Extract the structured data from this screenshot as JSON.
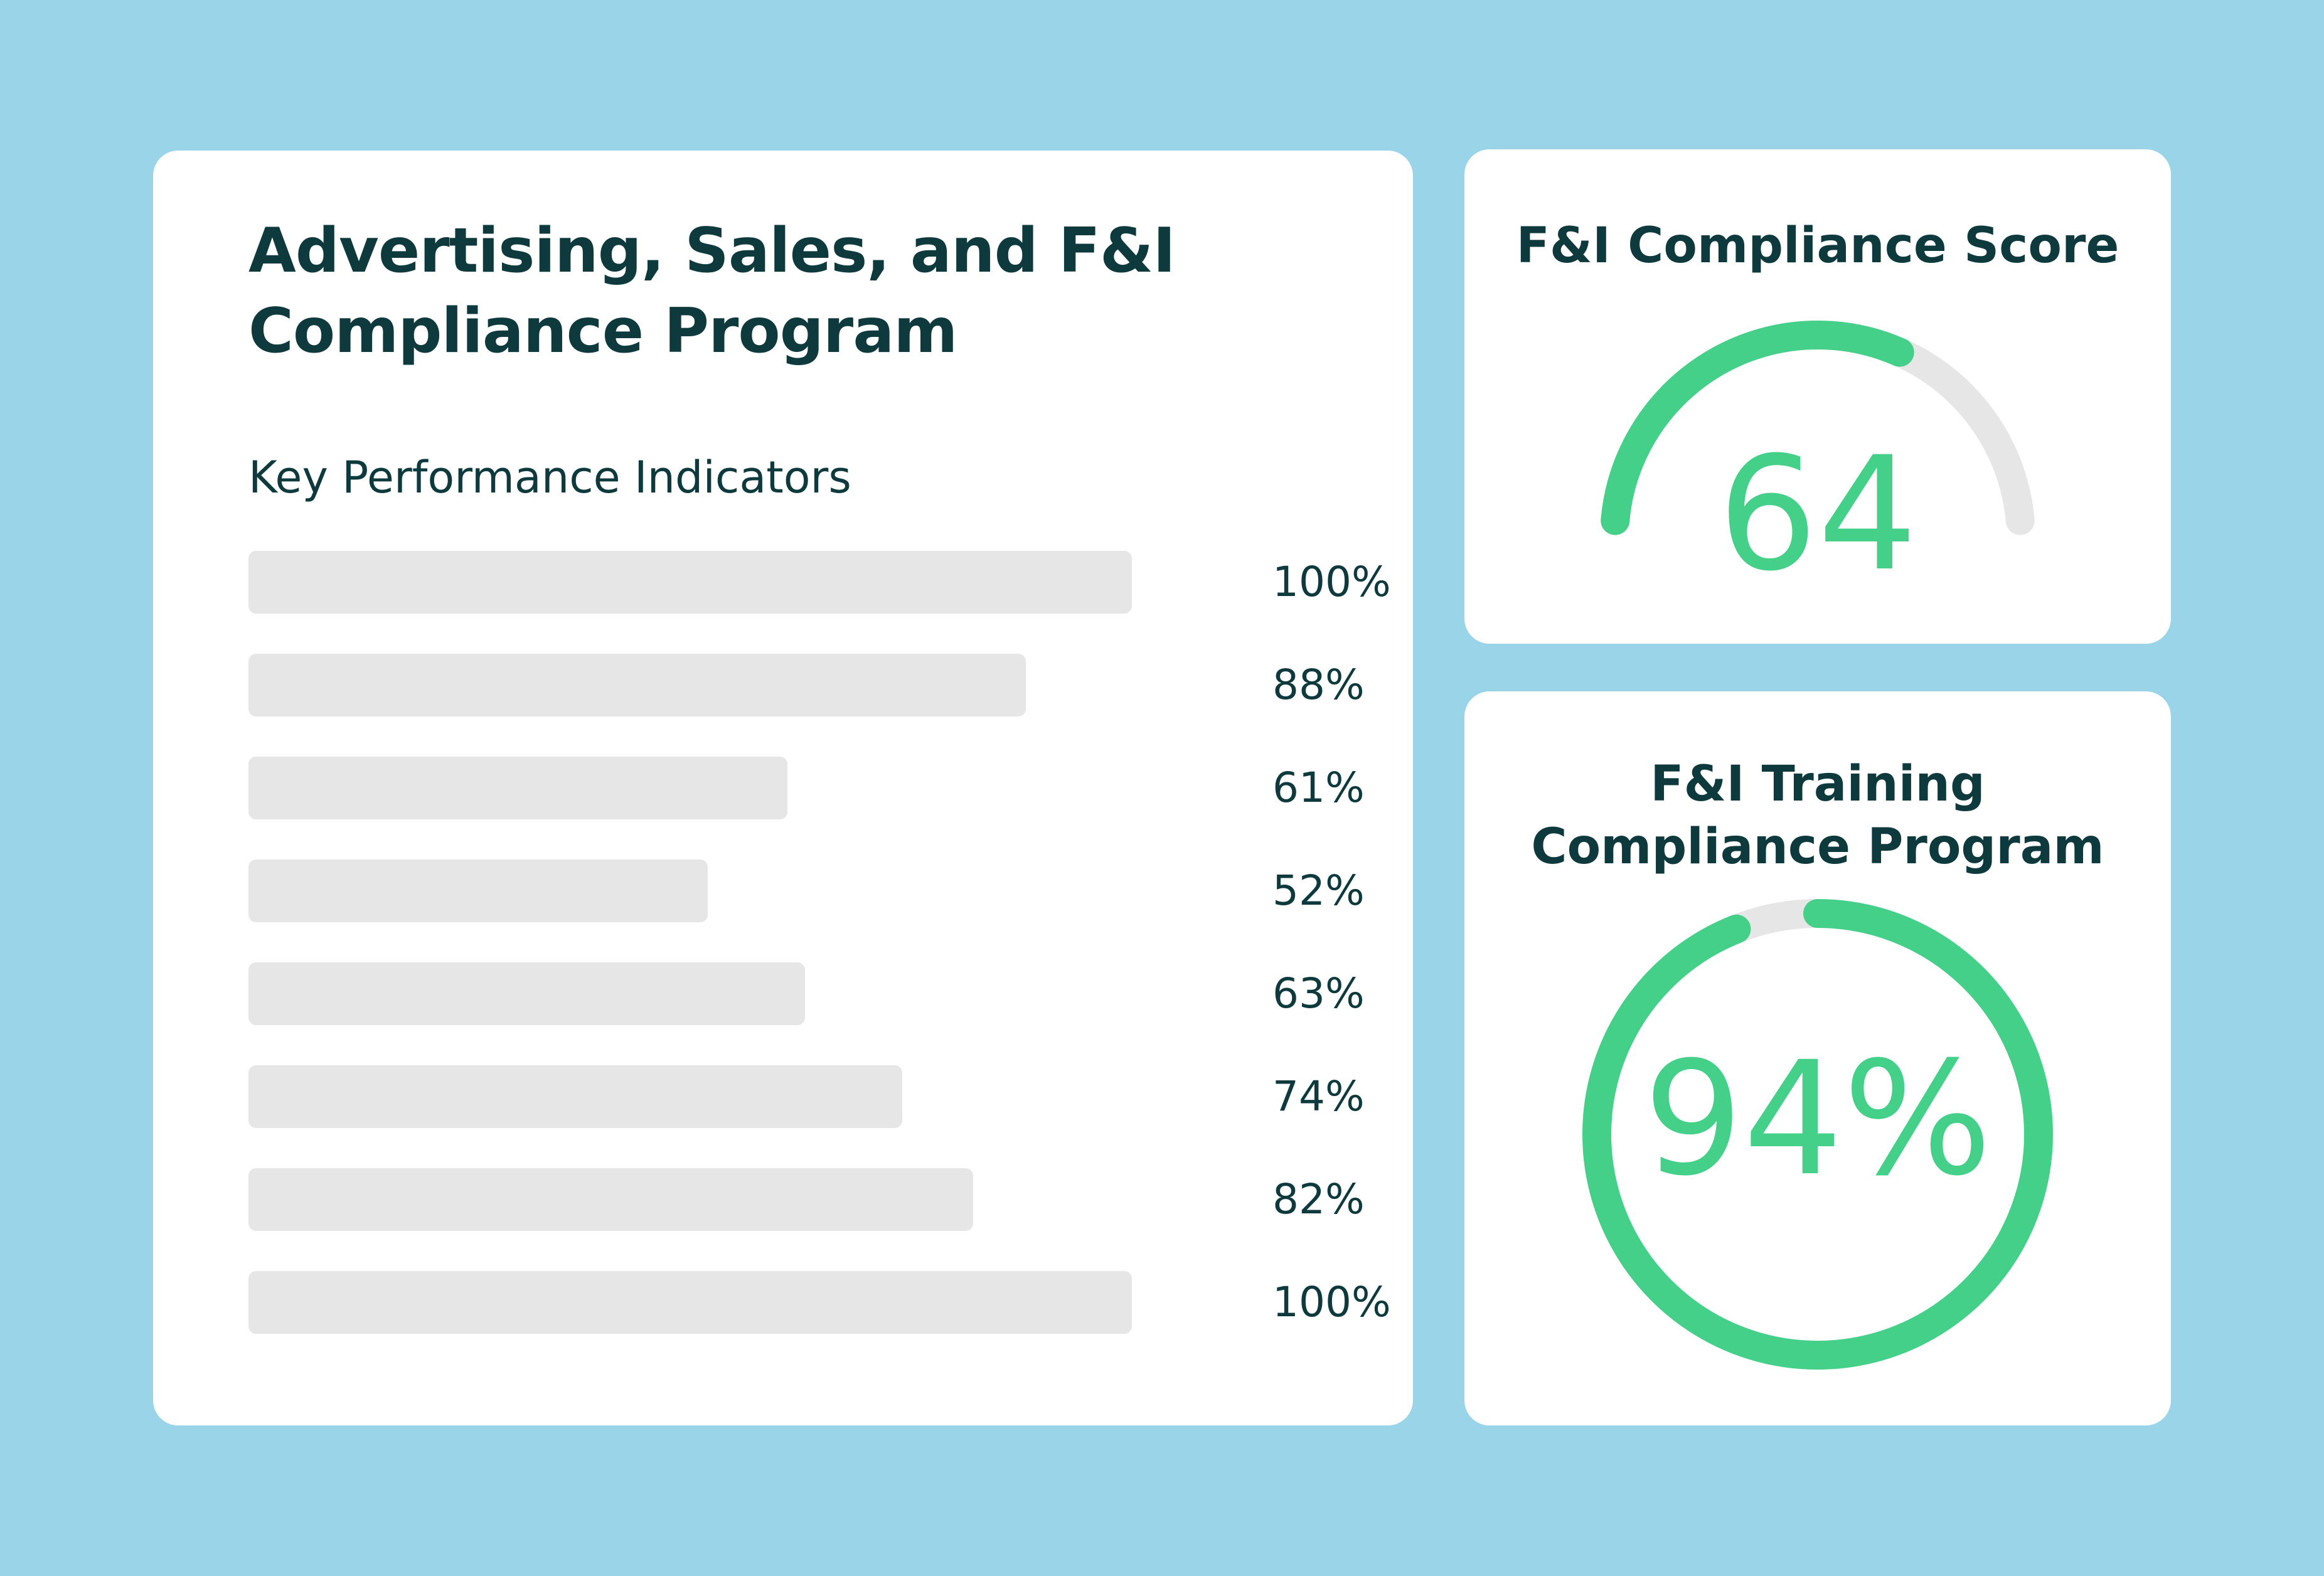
{
  "kpi_card": {
    "title_lines": [
      "Advertising, Sales, and F&I",
      "Compliance Program"
    ],
    "subtitle": "Key Performance Indicators",
    "bars": [
      {
        "value": 100,
        "label": "100%"
      },
      {
        "value": 88,
        "label": "88%"
      },
      {
        "value": 61,
        "label": "61%"
      },
      {
        "value": 52,
        "label": "52%"
      },
      {
        "value": 63,
        "label": "63%"
      },
      {
        "value": 74,
        "label": "74%"
      },
      {
        "value": 82,
        "label": "82%"
      },
      {
        "value": 100,
        "label": "100%"
      }
    ]
  },
  "score_card": {
    "title": "F&I Compliance Score",
    "value": "64",
    "fraction": 0.64
  },
  "training_card": {
    "title_lines": [
      "F&I Training",
      "Compliance Program"
    ],
    "value": "94%",
    "fraction": 0.94
  },
  "colors": {
    "background": "#99D4E8",
    "card": "#FFFFFF",
    "text": "#0E3A3E",
    "accent": "#44D088",
    "track": "#E6E6E6"
  }
}
